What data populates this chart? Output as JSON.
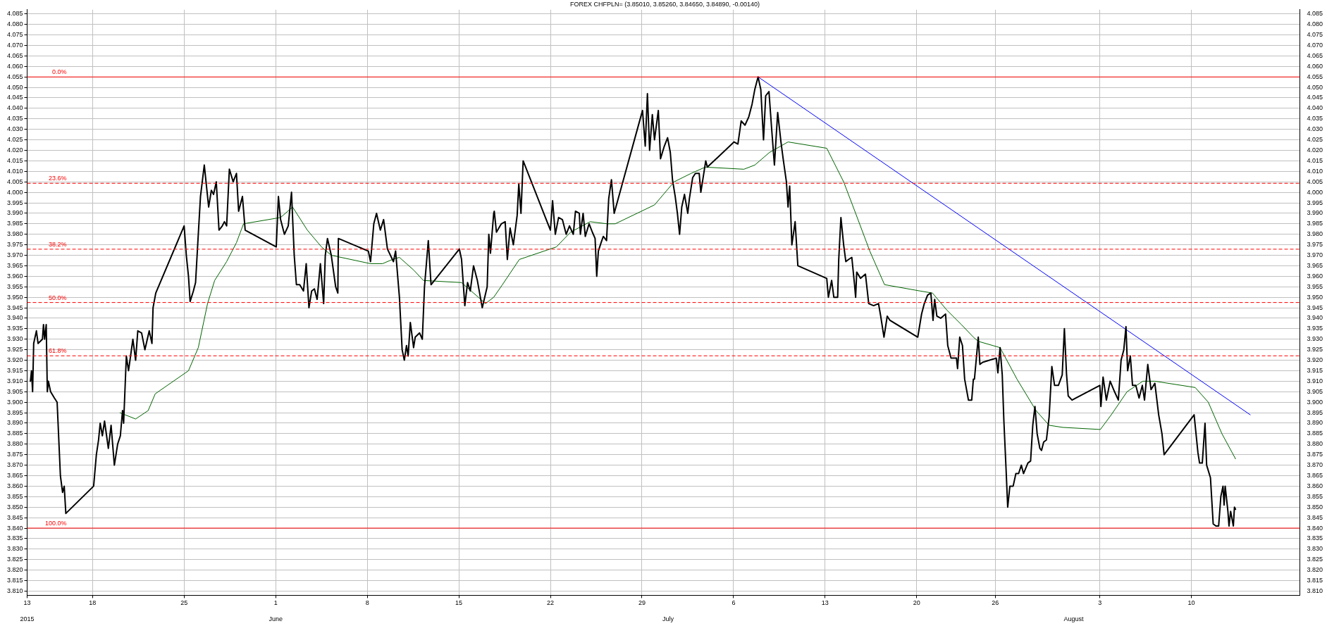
{
  "chart_data": {
    "type": "line",
    "title": "FOREX CHFPLN= (3.85010, 3.85260, 3.84650, 3.84890, -0.00140)",
    "xlim": [
      "2015-05-13",
      "2015-08-18T07:00"
    ],
    "xticks": [
      {
        "value": "2015-05-13",
        "label": "13"
      },
      {
        "value": "2015-05-18",
        "label": "18"
      },
      {
        "value": "2015-05-25",
        "label": "25"
      },
      {
        "value": "2015-06-01",
        "label": "1"
      },
      {
        "value": "2015-06-08",
        "label": "8"
      },
      {
        "value": "2015-06-15",
        "label": "15"
      },
      {
        "value": "2015-06-22",
        "label": "22"
      },
      {
        "value": "2015-06-29",
        "label": "29"
      },
      {
        "value": "2015-07-06",
        "label": "6"
      },
      {
        "value": "2015-07-13",
        "label": "13"
      },
      {
        "value": "2015-07-20",
        "label": "20"
      },
      {
        "value": "2015-07-26",
        "label": "26"
      },
      {
        "value": "2015-08-03",
        "label": "3"
      },
      {
        "value": "2015-08-10",
        "label": "10"
      }
    ],
    "x2lim": [
      "2015-05-13",
      "2015-08-18T07:00"
    ],
    "x2ticks": [
      {
        "value": "2015-05-13",
        "label": "2015"
      },
      {
        "value": "2015-06-01",
        "label": "June"
      },
      {
        "value": "2015-07-01",
        "label": "July"
      },
      {
        "value": "2015-08-01",
        "label": "August"
      }
    ],
    "ylim": [
      3.808,
      4.087
    ],
    "yticks": [
      {
        "value": 3.81,
        "label": "3.810"
      },
      {
        "value": 3.815,
        "label": "3.815"
      },
      {
        "value": 3.82,
        "label": "3.820"
      },
      {
        "value": 3.825,
        "label": "3.825"
      },
      {
        "value": 3.83,
        "label": "3.830"
      },
      {
        "value": 3.835,
        "label": "3.835"
      },
      {
        "value": 3.84,
        "label": "3.840"
      },
      {
        "value": 3.845,
        "label": "3.845"
      },
      {
        "value": 3.85,
        "label": "3.850"
      },
      {
        "value": 3.855,
        "label": "3.855"
      },
      {
        "value": 3.86,
        "label": "3.860"
      },
      {
        "value": 3.865,
        "label": "3.865"
      },
      {
        "value": 3.87,
        "label": "3.870"
      },
      {
        "value": 3.875,
        "label": "3.875"
      },
      {
        "value": 3.88,
        "label": "3.880"
      },
      {
        "value": 3.885,
        "label": "3.885"
      },
      {
        "value": 3.89,
        "label": "3.890"
      },
      {
        "value": 3.895,
        "label": "3.895"
      },
      {
        "value": 3.9,
        "label": "3.900"
      },
      {
        "value": 3.905,
        "label": "3.905"
      },
      {
        "value": 3.91,
        "label": "3.910"
      },
      {
        "value": 3.915,
        "label": "3.915"
      },
      {
        "value": 3.92,
        "label": "3.920"
      },
      {
        "value": 3.925,
        "label": "3.925"
      },
      {
        "value": 3.93,
        "label": "3.930"
      },
      {
        "value": 3.935,
        "label": "3.935"
      },
      {
        "value": 3.94,
        "label": "3.940"
      },
      {
        "value": 3.945,
        "label": "3.945"
      },
      {
        "value": 3.95,
        "label": "3.950"
      },
      {
        "value": 3.955,
        "label": "3.955"
      },
      {
        "value": 3.96,
        "label": "3.960"
      },
      {
        "value": 3.965,
        "label": "3.965"
      },
      {
        "value": 3.97,
        "label": "3.970"
      },
      {
        "value": 3.975,
        "label": "3.975"
      },
      {
        "value": 3.98,
        "label": "3.980"
      },
      {
        "value": 3.985,
        "label": "3.985"
      },
      {
        "value": 3.99,
        "label": "3.990"
      },
      {
        "value": 3.995,
        "label": "3.995"
      },
      {
        "value": 4,
        "label": "4.000"
      },
      {
        "value": 4.005,
        "label": "4.005"
      },
      {
        "value": 4.01,
        "label": "4.010"
      },
      {
        "value": 4.015,
        "label": "4.015"
      },
      {
        "value": 4.02,
        "label": "4.020"
      },
      {
        "value": 4.025,
        "label": "4.025"
      },
      {
        "value": 4.03,
        "label": "4.030"
      },
      {
        "value": 4.035,
        "label": "4.035"
      },
      {
        "value": 4.04,
        "label": "4.040"
      },
      {
        "value": 4.045,
        "label": "4.045"
      },
      {
        "value": 4.05,
        "label": "4.050"
      },
      {
        "value": 4.055,
        "label": "4.055"
      },
      {
        "value": 4.06,
        "label": "4.060"
      },
      {
        "value": 4.065,
        "label": "4.065"
      },
      {
        "value": 4.07,
        "label": "4.070"
      },
      {
        "value": 4.075,
        "label": "4.075"
      },
      {
        "value": 4.08,
        "label": "4.080"
      },
      {
        "value": 4.085,
        "label": "4.085"
      }
    ],
    "y2lim": [
      3.808,
      4.087
    ],
    "y2ticks": [
      {
        "value": 3.81,
        "label": "3.810"
      },
      {
        "value": 3.815,
        "label": "3.815"
      },
      {
        "value": 3.82,
        "label": "3.820"
      },
      {
        "value": 3.825,
        "label": "3.825"
      },
      {
        "value": 3.83,
        "label": "3.830"
      },
      {
        "value": 3.835,
        "label": "3.835"
      },
      {
        "value": 3.84,
        "label": "3.840"
      },
      {
        "value": 3.845,
        "label": "3.845"
      },
      {
        "value": 3.85,
        "label": "3.850"
      },
      {
        "value": 3.855,
        "label": "3.855"
      },
      {
        "value": 3.86,
        "label": "3.860"
      },
      {
        "value": 3.865,
        "label": "3.865"
      },
      {
        "value": 3.87,
        "label": "3.870"
      },
      {
        "value": 3.875,
        "label": "3.875"
      },
      {
        "value": 3.88,
        "label": "3.880"
      },
      {
        "value": 3.885,
        "label": "3.885"
      },
      {
        "value": 3.89,
        "label": "3.890"
      },
      {
        "value": 3.895,
        "label": "3.895"
      },
      {
        "value": 3.9,
        "label": "3.900"
      },
      {
        "value": 3.905,
        "label": "3.905"
      },
      {
        "value": 3.91,
        "label": "3.910"
      },
      {
        "value": 3.915,
        "label": "3.915"
      },
      {
        "value": 3.92,
        "label": "3.920"
      },
      {
        "value": 3.925,
        "label": "3.925"
      },
      {
        "value": 3.93,
        "label": "3.930"
      },
      {
        "value": 3.935,
        "label": "3.935"
      },
      {
        "value": 3.94,
        "label": "3.940"
      },
      {
        "value": 3.945,
        "label": "3.945"
      },
      {
        "value": 3.95,
        "label": "3.950"
      },
      {
        "value": 3.955,
        "label": "3.955"
      },
      {
        "value": 3.96,
        "label": "3.960"
      },
      {
        "value": 3.965,
        "label": "3.965"
      },
      {
        "value": 3.97,
        "label": "3.970"
      },
      {
        "value": 3.975,
        "label": "3.975"
      },
      {
        "value": 3.98,
        "label": "3.980"
      },
      {
        "value": 3.985,
        "label": "3.985"
      },
      {
        "value": 3.99,
        "label": "3.990"
      },
      {
        "value": 3.995,
        "label": "3.995"
      },
      {
        "value": 4,
        "label": "4.000"
      },
      {
        "value": 4.005,
        "label": "4.005"
      },
      {
        "value": 4.01,
        "label": "4.010"
      },
      {
        "value": 4.015,
        "label": "4.015"
      },
      {
        "value": 4.02,
        "label": "4.020"
      },
      {
        "value": 4.025,
        "label": "4.025"
      },
      {
        "value": 4.03,
        "label": "4.030"
      },
      {
        "value": 4.035,
        "label": "4.035"
      },
      {
        "value": 4.04,
        "label": "4.040"
      },
      {
        "value": 4.045,
        "label": "4.045"
      },
      {
        "value": 4.05,
        "label": "4.050"
      },
      {
        "value": 4.055,
        "label": "4.055"
      },
      {
        "value": 4.06,
        "label": "4.060"
      },
      {
        "value": 4.065,
        "label": "4.065"
      },
      {
        "value": 4.07,
        "label": "4.070"
      },
      {
        "value": 4.075,
        "label": "4.075"
      },
      {
        "value": 4.08,
        "label": "4.080"
      },
      {
        "value": 4.085,
        "label": "4.085"
      }
    ],
    "grid": true,
    "marker": "none",
    "series": [
      {
        "color": "#000000",
        "x": [
          "2015-05-13T06:00",
          "2015-05-13T08:00",
          "2015-05-13T10:00",
          "2015-05-13T12:00",
          "2015-05-13T17:00",
          "2015-05-13T20:00",
          "2015-05-14T04:00",
          "2015-05-14T06:00",
          "2015-05-14T08:00",
          "2015-05-14T11:00",
          "2015-05-14T13:00",
          "2015-05-14T15:00",
          "2015-05-14T19:00",
          "2015-05-15T02:00",
          "2015-05-15T07:00",
          "2015-05-15T13:00",
          "2015-05-15T17:00",
          "2015-05-15T20:00",
          "2015-05-15T23:00",
          "2015-05-18T02:00",
          "2015-05-18T07:00",
          "2015-05-18T11:00",
          "2015-05-18T14:00",
          "2015-05-18T18:00",
          "2015-05-18T22:00",
          "2015-05-19T05:00",
          "2015-05-19T10:00",
          "2015-05-19T16:00",
          "2015-05-19T22:00",
          "2015-05-20T03:00",
          "2015-05-20T07:00",
          "2015-05-20T09:00",
          "2015-05-20T14:00",
          "2015-05-20T18:00",
          "2015-05-21T02:00",
          "2015-05-21T07:00",
          "2015-05-21T11:00",
          "2015-05-21T18:00",
          "2015-05-22T00:00",
          "2015-05-22T08:00",
          "2015-05-22T13:00",
          "2015-05-22T15:00",
          "2015-05-22T20:00",
          "2015-05-25T00:00",
          "2015-05-25T04:00",
          "2015-05-25T08:00",
          "2015-05-25T11:00",
          "2015-05-25T17:00",
          "2015-05-25T21:00",
          "2015-05-26T02:00",
          "2015-05-26T06:00",
          "2015-05-26T13:00",
          "2015-05-26T21:00",
          "2015-05-27T02:00",
          "2015-05-27T06:00",
          "2015-05-27T11:00",
          "2015-05-27T16:00",
          "2015-05-27T22:00",
          "2015-05-28T02:00",
          "2015-05-28T06:00",
          "2015-05-28T11:00",
          "2015-05-28T18:00",
          "2015-05-29T00:00",
          "2015-05-29T04:00",
          "2015-05-29T11:00",
          "2015-05-29T16:00",
          "2015-06-01T01:00",
          "2015-06-01T05:00",
          "2015-06-01T09:00",
          "2015-06-01T16:00",
          "2015-06-01T23:00",
          "2015-06-02T05:00",
          "2015-06-02T10:00",
          "2015-06-02T14:00",
          "2015-06-02T20:00",
          "2015-06-03T03:00",
          "2015-06-03T08:00",
          "2015-06-03T13:00",
          "2015-06-03T18:00",
          "2015-06-03T23:00",
          "2015-06-04T04:00",
          "2015-06-04T10:00",
          "2015-06-04T16:00",
          "2015-06-04T19:00",
          "2015-06-04T23:00",
          "2015-06-05T06:00",
          "2015-06-05T14:00",
          "2015-06-05T18:00",
          "2015-06-05T19:00",
          "2015-06-08T02:00",
          "2015-06-08T06:00",
          "2015-06-08T12:00",
          "2015-06-08T17:00",
          "2015-06-09T00:00",
          "2015-06-09T06:00",
          "2015-06-09T13:00",
          "2015-06-10T00:00",
          "2015-06-10T04:00",
          "2015-06-10T11:00",
          "2015-06-10T16:00",
          "2015-06-10T20:00",
          "2015-06-11T00:00",
          "2015-06-11T03:00",
          "2015-06-11T07:00",
          "2015-06-11T13:00",
          "2015-06-11T16:00",
          "2015-06-12T00:00",
          "2015-06-12T05:00",
          "2015-06-12T09:00",
          "2015-06-12T16:00",
          "2015-06-12T21:00",
          "2015-06-15T01:00",
          "2015-06-15T05:00",
          "2015-06-15T11:00",
          "2015-06-15T16:00",
          "2015-06-15T21:00",
          "2015-06-16T03:00",
          "2015-06-16T10:00",
          "2015-06-16T19:00",
          "2015-06-17T04:00",
          "2015-06-17T07:00",
          "2015-06-17T10:00",
          "2015-06-17T16:00",
          "2015-06-17T17:00",
          "2015-06-17T21:00",
          "2015-06-18T06:00",
          "2015-06-18T13:00",
          "2015-06-18T17:00",
          "2015-06-18T22:00",
          "2015-06-19T04:00",
          "2015-06-19T11:00",
          "2015-06-19T14:00",
          "2015-06-19T18:00",
          "2015-06-19T22:00",
          "2015-06-22T00:00",
          "2015-06-22T04:00",
          "2015-06-22T09:00",
          "2015-06-22T15:00",
          "2015-06-22T22:00",
          "2015-06-23T05:00",
          "2015-06-23T11:00",
          "2015-06-23T18:00",
          "2015-06-23T22:00",
          "2015-06-24T05:00",
          "2015-06-24T07:00",
          "2015-06-24T12:00",
          "2015-06-24T16:00",
          "2015-06-24T23:00",
          "2015-06-25T05:00",
          "2015-06-25T10:00",
          "2015-06-25T13:00",
          "2015-06-25T16:00",
          "2015-06-25T21:00",
          "2015-06-26T01:00",
          "2015-06-26T07:00",
          "2015-06-26T11:00",
          "2015-06-26T16:00",
          "2015-06-26T21:00",
          "2015-06-29T01:00",
          "2015-06-29T06:00",
          "2015-06-29T10:00",
          "2015-06-29T14:00",
          "2015-06-29T19:00",
          "2015-06-29T23:00",
          "2015-06-30T06:00",
          "2015-06-30T10:00",
          "2015-06-30T17:00",
          "2015-06-30T23:00",
          "2015-07-01T04:00",
          "2015-07-01T08:00",
          "2015-07-01T13:00",
          "2015-07-01T17:00",
          "2015-07-01T21:00",
          "2015-07-02T01:00",
          "2015-07-02T06:00",
          "2015-07-02T12:00",
          "2015-07-02T15:00",
          "2015-07-02T21:00",
          "2015-07-03T02:00",
          "2015-07-03T09:00",
          "2015-07-03T12:00",
          "2015-07-03T18:00",
          "2015-07-03T21:00",
          "2015-07-04T00:00",
          "2015-07-06T01:00",
          "2015-07-06T08:00",
          "2015-07-06T14:00",
          "2015-07-06T21:00",
          "2015-07-07T04:00",
          "2015-07-07T10:00",
          "2015-07-07T15:00",
          "2015-07-07T21:00",
          "2015-07-08T02:00",
          "2015-07-08T07:00",
          "2015-07-08T11:00",
          "2015-07-08T17:00",
          "2015-07-08T22:00",
          "2015-07-09T03:00",
          "2015-07-09T09:00",
          "2015-07-09T15:00",
          "2015-07-09T19:00",
          "2015-07-10T01:00",
          "2015-07-10T04:00",
          "2015-07-10T07:00",
          "2015-07-10T11:00",
          "2015-07-10T17:00",
          "2015-07-10T22:00",
          "2015-07-13T03:00",
          "2015-07-13T06:00",
          "2015-07-13T12:00",
          "2015-07-13T16:00",
          "2015-07-13T23:00",
          "2015-07-14T01:00",
          "2015-07-14T05:00",
          "2015-07-14T10:00",
          "2015-07-14T14:00",
          "2015-07-14T19:00",
          "2015-07-15T01:00",
          "2015-07-15T06:00",
          "2015-07-15T08:00",
          "2015-07-15T10:00",
          "2015-07-15T17:00",
          "2015-07-16T02:00",
          "2015-07-16T08:00",
          "2015-07-16T17:00",
          "2015-07-17T02:00",
          "2015-07-17T06:00",
          "2015-07-17T12:00",
          "2015-07-17T18:00",
          "2015-07-17T23:00",
          "2015-07-20T02:00",
          "2015-07-20T09:00",
          "2015-07-20T14:00",
          "2015-07-20T20:00",
          "2015-07-21T02:00",
          "2015-07-21T06:00",
          "2015-07-21T09:00",
          "2015-07-21T13:00",
          "2015-07-21T20:00",
          "2015-07-22T05:00",
          "2015-07-22T09:00",
          "2015-07-22T15:00",
          "2015-07-23T01:00",
          "2015-07-23T03:00",
          "2015-07-23T07:00",
          "2015-07-23T12:00",
          "2015-07-23T16:00",
          "2015-07-23T23:00",
          "2015-07-24T05:00",
          "2015-07-24T08:00",
          "2015-07-24T10:00",
          "2015-07-24T17:00",
          "2015-07-24T20:00",
          "2015-07-25T01:00",
          "2015-07-26T02:00",
          "2015-07-26T05:00",
          "2015-07-26T09:00",
          "2015-07-26T13:00",
          "2015-07-26T16:00",
          "2015-07-26T20:00",
          "2015-07-26T23:00",
          "2015-07-27T03:00",
          "2015-07-27T09:00",
          "2015-07-27T14:00",
          "2015-07-27T19:00",
          "2015-07-28T00:00",
          "2015-07-28T04:00",
          "2015-07-28T12:00",
          "2015-07-28T17:00",
          "2015-07-28T21:00",
          "2015-07-29T01:00",
          "2015-07-29T05:00",
          "2015-07-29T10:00",
          "2015-07-29T13:00",
          "2015-07-29T17:00",
          "2015-07-29T22:00",
          "2015-07-30T03:00",
          "2015-07-30T08:00",
          "2015-07-30T13:00",
          "2015-07-30T20:00",
          "2015-07-31T03:00",
          "2015-07-31T07:00",
          "2015-07-31T11:00",
          "2015-07-31T14:00",
          "2015-07-31T21:00",
          "2015-08-03T00:00",
          "2015-08-03T02:00",
          "2015-08-03T06:00",
          "2015-08-03T12:00",
          "2015-08-03T19:00",
          "2015-08-04T03:00",
          "2015-08-04T10:00",
          "2015-08-04T15:00",
          "2015-08-04T20:00",
          "2015-08-05T00:00",
          "2015-08-05T03:00",
          "2015-08-05T08:00",
          "2015-08-05T12:00",
          "2015-08-05T18:00",
          "2015-08-06T00:00",
          "2015-08-06T06:00",
          "2015-08-06T10:00",
          "2015-08-06T16:00",
          "2015-08-06T22:00",
          "2015-08-07T05:00",
          "2015-08-07T12:00",
          "2015-08-07T18:00",
          "2015-08-07T22:00",
          "2015-08-10T05:00",
          "2015-08-10T12:00",
          "2015-08-10T15:00",
          "2015-08-10T20:00",
          "2015-08-11T01:00",
          "2015-08-11T04:00",
          "2015-08-11T11:00",
          "2015-08-11T16:00",
          "2015-08-11T21:00",
          "2015-08-12T02:00",
          "2015-08-12T06:00",
          "2015-08-12T10:00",
          "2015-08-12T12:00",
          "2015-08-12T14:00",
          "2015-08-12T19:00",
          "2015-08-12T21:00",
          "2015-08-13T00:00",
          "2015-08-13T05:00",
          "2015-08-13T07:00",
          "2015-08-13T09:00"
        ],
        "values": [
          3.91,
          3.915,
          3.905,
          3.928,
          3.934,
          3.928,
          3.93,
          3.937,
          3.93,
          3.937,
          3.905,
          3.91,
          3.905,
          3.902,
          3.9,
          3.865,
          3.857,
          3.86,
          3.847,
          3.86,
          3.875,
          3.882,
          3.89,
          3.884,
          3.891,
          3.878,
          3.889,
          3.87,
          3.88,
          3.884,
          3.896,
          3.89,
          3.922,
          3.915,
          3.93,
          3.92,
          3.934,
          3.933,
          3.925,
          3.934,
          3.928,
          3.945,
          3.952,
          3.984,
          3.97,
          3.96,
          3.948,
          3.953,
          3.957,
          3.98,
          3.998,
          4.013,
          3.993,
          4.001,
          3.999,
          4.005,
          3.982,
          3.984,
          3.986,
          3.984,
          4.011,
          4.005,
          4.009,
          3.991,
          3.998,
          3.982,
          3.974,
          3.998,
          3.987,
          3.98,
          3.984,
          4.0,
          3.97,
          3.956,
          3.956,
          3.953,
          3.966,
          3.945,
          3.953,
          3.954,
          3.949,
          3.966,
          3.947,
          3.97,
          3.978,
          3.97,
          3.955,
          3.952,
          3.978,
          3.972,
          3.967,
          3.985,
          3.99,
          3.982,
          3.987,
          3.973,
          3.967,
          3.972,
          3.95,
          3.925,
          3.92,
          3.927,
          3.922,
          3.938,
          3.926,
          3.931,
          3.933,
          3.93,
          3.955,
          3.977,
          3.956,
          3.973,
          3.968,
          3.946,
          3.957,
          3.953,
          3.965,
          3.958,
          3.945,
          3.955,
          3.98,
          3.971,
          3.99,
          3.991,
          3.981,
          3.985,
          3.986,
          3.968,
          3.983,
          3.975,
          3.989,
          4.004,
          3.99,
          4.015,
          3.982,
          3.996,
          3.98,
          3.988,
          3.987,
          3.98,
          3.984,
          3.98,
          3.991,
          3.99,
          3.98,
          3.99,
          3.979,
          3.985,
          3.981,
          3.978,
          3.96,
          3.972,
          3.976,
          3.979,
          3.977,
          3.997,
          4.006,
          3.99,
          4.039,
          4.022,
          4.047,
          4.02,
          4.037,
          4.025,
          4.039,
          4.016,
          4.022,
          4.026,
          4.019,
          4.006,
          3.998,
          3.99,
          3.98,
          3.993,
          3.999,
          3.99,
          3.997,
          4.007,
          4.009,
          4.009,
          4.0,
          4.01,
          4.015,
          4.012,
          4.024,
          4.023,
          4.034,
          4.032,
          4.036,
          4.042,
          4.049,
          4.055,
          4.049,
          4.025,
          4.046,
          4.048,
          4.03,
          4.013,
          4.038,
          4.024,
          4.016,
          4.005,
          3.993,
          4.003,
          3.975,
          3.986,
          3.965,
          3.959,
          3.95,
          3.958,
          3.95,
          3.95,
          3.968,
          3.988,
          3.975,
          3.967,
          3.968,
          3.969,
          3.956,
          3.95,
          3.962,
          3.959,
          3.961,
          3.947,
          3.946,
          3.947,
          3.941,
          3.931,
          3.941,
          3.939,
          3.931,
          3.942,
          3.947,
          3.951,
          3.952,
          3.939,
          3.949,
          3.941,
          3.94,
          3.942,
          3.927,
          3.921,
          3.921,
          3.916,
          3.931,
          3.927,
          3.911,
          3.901,
          3.901,
          3.911,
          3.911,
          3.931,
          3.918,
          3.919,
          3.921,
          3.914,
          3.926,
          3.913,
          3.891,
          3.868,
          3.85,
          3.86,
          3.86,
          3.866,
          3.866,
          3.87,
          3.866,
          3.871,
          3.872,
          3.889,
          3.898,
          3.885,
          3.878,
          3.877,
          3.881,
          3.882,
          3.893,
          3.917,
          3.908,
          3.908,
          3.913,
          3.935,
          3.913,
          3.903,
          3.901,
          3.908,
          3.898,
          3.912,
          3.901,
          3.91,
          3.905,
          3.901,
          3.92,
          3.925,
          3.936,
          3.915,
          3.922,
          3.908,
          3.908,
          3.902,
          3.908,
          3.901,
          3.918,
          3.906,
          3.909,
          3.894,
          3.885,
          3.875,
          3.894,
          3.876,
          3.871,
          3.871,
          3.89,
          3.87,
          3.864,
          3.842,
          3.841,
          3.841,
          3.855,
          3.86,
          3.851,
          3.86,
          3.848,
          3.841,
          3.848,
          3.841,
          3.85,
          3.849
        ]
      },
      {
        "color": "#006400",
        "x": [
          "2015-05-20T02:00",
          "2015-05-21T07:00",
          "2015-05-22T06:00",
          "2015-05-22T19:00",
          "2015-05-25T08:00",
          "2015-05-26T02:00",
          "2015-05-26T19:00",
          "2015-05-27T08:00",
          "2015-05-28T06:00",
          "2015-05-29T00:00",
          "2015-05-29T13:00",
          "2015-06-01T09:00",
          "2015-06-02T07:00",
          "2015-06-03T10:00",
          "2015-06-04T12:00",
          "2015-06-05T06:00",
          "2015-06-08T06:00",
          "2015-06-09T04:00",
          "2015-06-09T22:00",
          "2015-06-10T11:00",
          "2015-06-11T13:00",
          "2015-06-12T07:00",
          "2015-06-15T05:00",
          "2015-06-16T03:00",
          "2015-06-17T01:00",
          "2015-06-17T16:00",
          "2015-06-18T08:00",
          "2015-06-19T15:00",
          "2015-06-22T11:00",
          "2015-06-23T13:00",
          "2015-06-25T01:00",
          "2015-06-26T08:00",
          "2015-06-26T23:00",
          "2015-06-29T23:00",
          "2015-07-01T11:00",
          "2015-07-02T18:00",
          "2015-07-03T20:00",
          "2015-07-06T19:00",
          "2015-07-07T15:00",
          "2015-07-08T18:00",
          "2015-07-10T04:00",
          "2015-07-13T03:00",
          "2015-07-14T10:00",
          "2015-07-15T08:00",
          "2015-07-16T10:00",
          "2015-07-17T13:00",
          "2015-07-20T06:00",
          "2015-07-21T05:00",
          "2015-07-22T07:00",
          "2015-07-23T10:00",
          "2015-07-24T08:00",
          "2015-07-24T17:00",
          "2015-07-26T09:00",
          "2015-07-27T16:00",
          "2015-07-29T03:00",
          "2015-07-30T03:00",
          "2015-07-31T04:00",
          "2015-08-03T01:00",
          "2015-08-03T21:00",
          "2015-08-05T02:00",
          "2015-08-06T07:00",
          "2015-08-07T05:00",
          "2015-08-10T07:00",
          "2015-08-11T07:00",
          "2015-08-12T08:00",
          "2015-08-13T09:00"
        ],
        "values": [
          3.895,
          3.892,
          3.896,
          3.904,
          3.915,
          3.926,
          3.947,
          3.958,
          3.967,
          3.976,
          3.985,
          3.988,
          3.993,
          3.982,
          3.974,
          3.97,
          3.966,
          3.966,
          3.968,
          3.969,
          3.963,
          3.958,
          3.957,
          3.952,
          3.947,
          3.95,
          3.956,
          3.968,
          3.974,
          3.981,
          3.986,
          3.985,
          3.985,
          3.994,
          4.005,
          4.009,
          4.012,
          4.011,
          4.013,
          4.019,
          4.024,
          4.021,
          4.005,
          3.99,
          3.972,
          3.956,
          3.953,
          3.952,
          3.944,
          3.937,
          3.931,
          3.929,
          3.926,
          3.911,
          3.896,
          3.889,
          3.888,
          3.887,
          3.894,
          3.905,
          3.91,
          3.91,
          3.907,
          3.9,
          3.885,
          3.873
        ]
      },
      {
        "color": "#0000ff",
        "x": [
          "2015-07-07T21:00",
          "2015-08-14T12:00"
        ],
        "values": [
          4.055,
          3.894
        ]
      }
    ],
    "ref_lines": [
      {
        "axis": "y",
        "value": 4.055,
        "color": "#ff0000",
        "line_style": "solid"
      },
      {
        "axis": "y",
        "value": 4.0043,
        "color": "#ff0000",
        "line_style": "dashed"
      },
      {
        "axis": "y",
        "value": 3.9729,
        "color": "#ff0000",
        "line_style": "dashed"
      },
      {
        "axis": "y",
        "value": 3.9475,
        "color": "#ff0000",
        "line_style": "dashed"
      },
      {
        "axis": "y",
        "value": 3.9221,
        "color": "#ff0000",
        "line_style": "dashed"
      },
      {
        "axis": "y",
        "value": 3.84,
        "color": "#ff0000",
        "line_style": "solid"
      }
    ],
    "annotations": [
      "0.0%",
      "23.6%",
      "38.2%",
      "50.0%",
      "61.8%",
      "100.0%"
    ]
  }
}
